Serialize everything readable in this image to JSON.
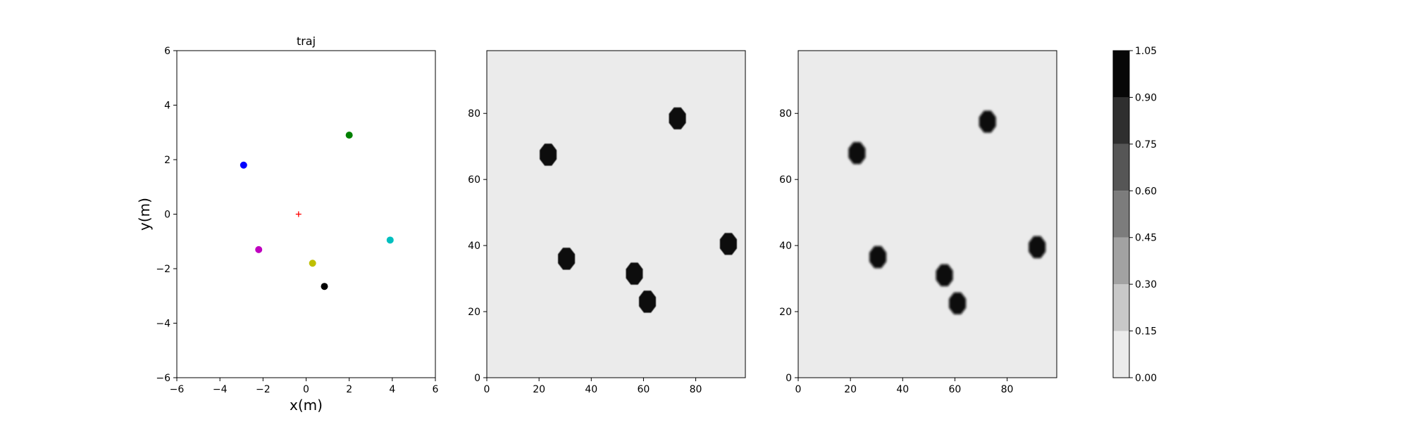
{
  "chart_data": [
    {
      "type": "scatter",
      "title": "traj",
      "xlabel": "x(m)",
      "ylabel": "y(m)",
      "xlim": [
        -6,
        6
      ],
      "ylim": [
        -6,
        6
      ],
      "xticks": [
        -6,
        -4,
        -2,
        0,
        2,
        4,
        6
      ],
      "yticks": [
        -6,
        -4,
        -2,
        0,
        2,
        4,
        6
      ],
      "grid": false,
      "series": [
        {
          "color": "#0000ff",
          "marker": "circle",
          "x": [
            -2.9
          ],
          "y": [
            1.8
          ]
        },
        {
          "color": "#008000",
          "marker": "circle",
          "x": [
            2.0
          ],
          "y": [
            2.9
          ]
        },
        {
          "color": "#bf00bf",
          "marker": "circle",
          "x": [
            -2.2
          ],
          "y": [
            -1.3
          ]
        },
        {
          "color": "#bfbf00",
          "marker": "circle",
          "x": [
            0.3
          ],
          "y": [
            -1.8
          ]
        },
        {
          "color": "#00bfbf",
          "marker": "circle",
          "x": [
            3.9
          ],
          "y": [
            -0.95
          ]
        },
        {
          "color": "#000000",
          "marker": "circle",
          "x": [
            0.85
          ],
          "y": [
            -2.65
          ]
        },
        {
          "color": "#ff0000",
          "marker": "plus",
          "x": [
            -0.35
          ],
          "y": [
            0.0
          ]
        }
      ]
    },
    {
      "type": "heatmap",
      "xlim": [
        0,
        99
      ],
      "ylim": [
        0,
        99
      ],
      "xticks": [
        0,
        20,
        40,
        60,
        80
      ],
      "yticks": [
        0,
        20,
        40,
        60,
        80
      ],
      "background_value": 0.05,
      "blobs": [
        {
          "x": 23.5,
          "y": 67.5,
          "value": 1.0
        },
        {
          "x": 73,
          "y": 78.5,
          "value": 1.0
        },
        {
          "x": 30.5,
          "y": 36,
          "value": 1.0
        },
        {
          "x": 56.5,
          "y": 31.5,
          "value": 1.0
        },
        {
          "x": 61.5,
          "y": 23,
          "value": 1.0
        },
        {
          "x": 92.5,
          "y": 40.5,
          "value": 1.0
        }
      ]
    },
    {
      "type": "heatmap",
      "xlim": [
        0,
        99
      ],
      "ylim": [
        0,
        99
      ],
      "xticks": [
        0,
        20,
        40,
        60,
        80
      ],
      "yticks": [
        0,
        20,
        40,
        60,
        80
      ],
      "background_value": 0.05,
      "blobs": [
        {
          "x": 22.5,
          "y": 68,
          "value": 1.0
        },
        {
          "x": 72.5,
          "y": 77.5,
          "value": 1.0
        },
        {
          "x": 30.5,
          "y": 36.5,
          "value": 1.0
        },
        {
          "x": 56,
          "y": 31,
          "value": 1.0
        },
        {
          "x": 61,
          "y": 22.5,
          "value": 1.0
        },
        {
          "x": 91.5,
          "y": 39.5,
          "value": 1.0
        }
      ]
    }
  ],
  "colorbar": {
    "levels": [
      0.0,
      0.15,
      0.3,
      0.45,
      0.6,
      0.75,
      0.9,
      1.05
    ],
    "tick_labels": [
      "0.00",
      "0.15",
      "0.30",
      "0.45",
      "0.60",
      "0.75",
      "0.90",
      "1.05"
    ],
    "colors": [
      "#ebebeb",
      "#c8c8c8",
      "#a2a2a2",
      "#7c7c7c",
      "#565656",
      "#2f2f2f",
      "#070707"
    ]
  }
}
